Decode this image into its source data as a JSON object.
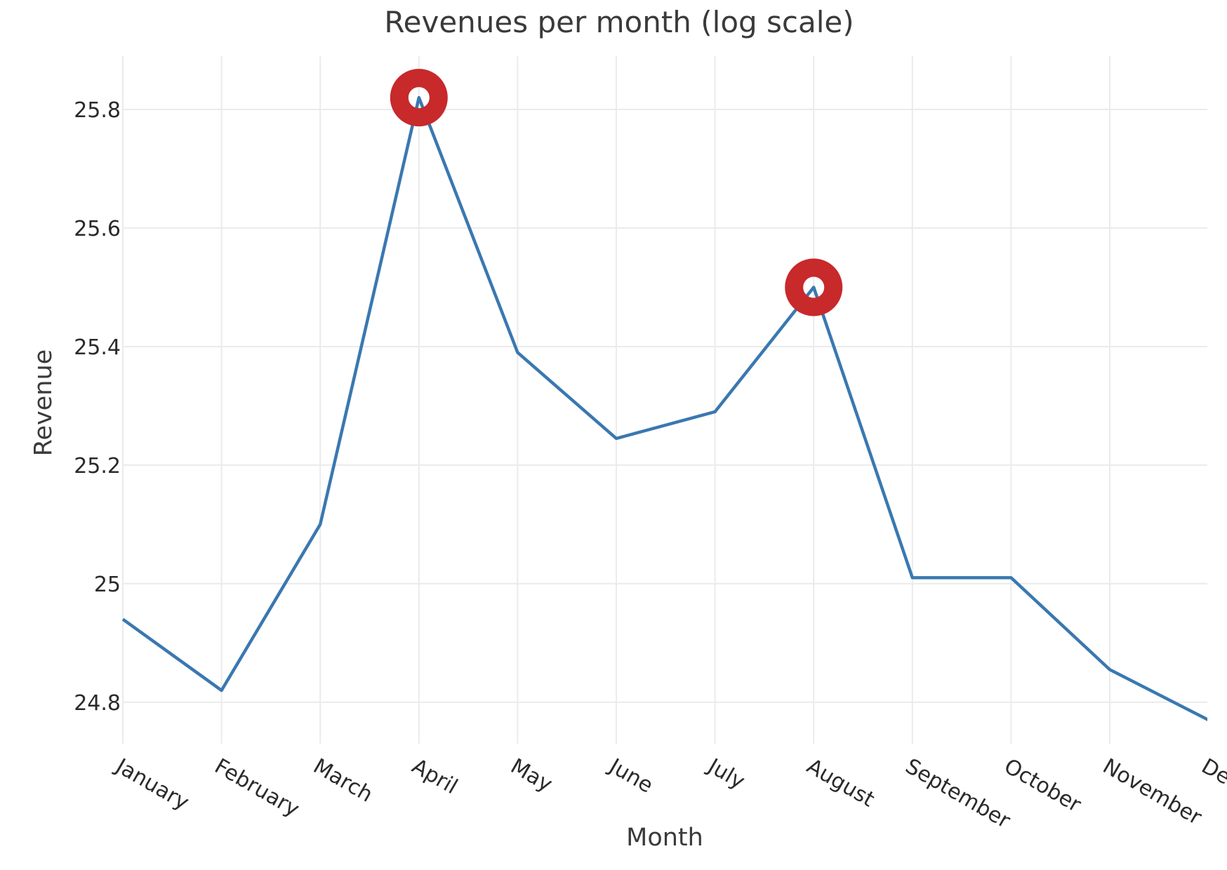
{
  "chart_data": {
    "type": "line",
    "title": "Revenues per month (log scale)",
    "xlabel": "Month",
    "ylabel": "Revenue",
    "y_scale_note": "natural log of revenue",
    "categories": [
      "January",
      "February",
      "March",
      "April",
      "May",
      "June",
      "July",
      "August",
      "September",
      "October",
      "November",
      "De"
    ],
    "series": [
      {
        "values": [
          24.94,
          24.82,
          25.1,
          25.82,
          25.39,
          25.245,
          25.29,
          25.5,
          25.01,
          25.01,
          24.855,
          24.77
        ],
        "color": "#3a78b0"
      }
    ],
    "highlighted_points": [
      {
        "category": "April",
        "value": 25.82
      },
      {
        "category": "August",
        "value": 25.5
      }
    ],
    "highlight_color": "#c8292b",
    "yticks": [
      24.8,
      25,
      25.2,
      25.4,
      25.6,
      25.8
    ],
    "ytick_labels": [
      "24.8",
      "25",
      "25.2",
      "25.4",
      "25.6",
      "25.8"
    ],
    "ylim": [
      24.73,
      25.89
    ],
    "grid": true,
    "legend": "none"
  }
}
